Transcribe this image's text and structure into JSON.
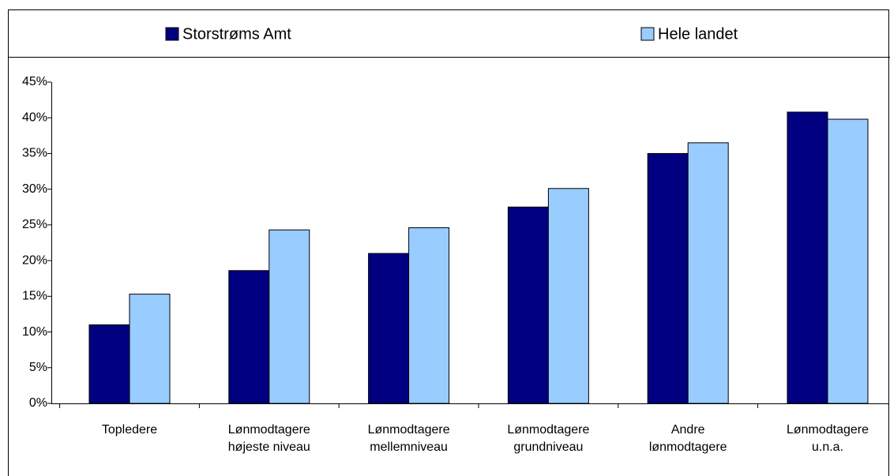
{
  "chart_data": {
    "type": "bar",
    "categories": [
      "Topledere",
      "Lønmodtagere højeste niveau",
      "Lønmodtagere mellemniveau",
      "Lønmodtagere grundniveau",
      "Andre lønmodtagere",
      "Lønmodtagere u.n.a."
    ],
    "series": [
      {
        "name": "Storstrøms Amt",
        "color": "#000080",
        "values": [
          11,
          18.6,
          21,
          27.5,
          35,
          40.8
        ]
      },
      {
        "name": "Hele landet",
        "color": "#99ccff",
        "values": [
          15.3,
          24.3,
          24.6,
          30.1,
          36.5,
          39.8
        ]
      }
    ],
    "ylim": [
      0,
      45
    ],
    "yticks": [
      {
        "value": 0,
        "label": "0%"
      },
      {
        "value": 5,
        "label": "5%"
      },
      {
        "value": 10,
        "label": "10%"
      },
      {
        "value": 15,
        "label": "15%"
      },
      {
        "value": 20,
        "label": "20%"
      },
      {
        "value": 25,
        "label": "25%"
      },
      {
        "value": 30,
        "label": "30%"
      },
      {
        "value": 35,
        "label": "35%"
      },
      {
        "value": 40,
        "label": "40%"
      },
      {
        "value": 45,
        "label": "45%"
      }
    ],
    "grid": false,
    "legend": "top"
  }
}
